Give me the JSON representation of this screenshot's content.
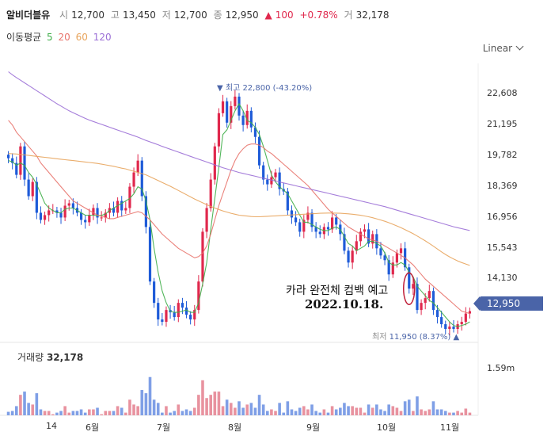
{
  "header": {
    "name": "알비더블유",
    "open_label": "시",
    "open": "12,700",
    "high_label": "고",
    "high": "13,450",
    "low_label": "저",
    "low": "12,700",
    "close_label": "종",
    "close": "12,950",
    "change_arrow": "▲",
    "change": "100",
    "change_pct": "+0.78%",
    "volume_label": "거",
    "volume": "32,178"
  },
  "ma_legend": {
    "label": "이동평균",
    "items": [
      {
        "period": "5",
        "color": "#3fae49"
      },
      {
        "period": "20",
        "color": "#e8736b"
      },
      {
        "period": "60",
        "color": "#e8a45c"
      },
      {
        "period": "120",
        "color": "#9b6fd6"
      }
    ]
  },
  "scale_selector": {
    "value": "Linear"
  },
  "annotations": {
    "high_label": "▼ 최고 22,800 (-43.20%)",
    "low_prefix": "최저",
    "low_value": "11,950 (8.37%) ▲",
    "note_line1": "카라 완전체 컴백 예고",
    "note_line2": "2022.10.18."
  },
  "current_price_tag": "12,950",
  "volume_panel": {
    "title": "거래량",
    "value": "32,178",
    "axis_label": "1.59m"
  },
  "colors": {
    "up": "#e0284d",
    "down": "#1e5bd8",
    "accent": "#4a64a8"
  },
  "chart_data": {
    "type": "candlestick",
    "y_ticks": [
      "22,608",
      "21,195",
      "19,782",
      "18,369",
      "16,956",
      "15,543",
      "14,130"
    ],
    "ylim": [
      11700,
      23400
    ],
    "x_ticks": [
      "14",
      "6월",
      "7월",
      "8월",
      "9월",
      "10월",
      "11월"
    ],
    "x_tick_positions": [
      3,
      17,
      36,
      54,
      74,
      93,
      109
    ],
    "grid": false,
    "n_bars": 115,
    "close": [
      19400,
      19200,
      18700,
      19900,
      18500,
      17800,
      18400,
      17100,
      16800,
      17000,
      17200,
      17200,
      17100,
      16900,
      17400,
      17500,
      17300,
      17100,
      16800,
      16700,
      17000,
      17300,
      16900,
      16900,
      17100,
      17300,
      17100,
      17600,
      17200,
      17300,
      18200,
      18800,
      19300,
      17800,
      16500,
      14200,
      13300,
      12600,
      12500,
      13000,
      12900,
      12700,
      13300,
      13100,
      12800,
      12600,
      13000,
      14200,
      16300,
      17300,
      18500,
      19900,
      21300,
      21800,
      20900,
      21600,
      22000,
      21200,
      20800,
      21400,
      20700,
      20300,
      19100,
      18500,
      18300,
      18600,
      18800,
      18100,
      18000,
      17200,
      16900,
      16700,
      16300,
      16800,
      17100,
      16500,
      16300,
      16200,
      16500,
      16400,
      16900,
      16600,
      16200,
      15500,
      15000,
      15500,
      15900,
      16300,
      16400,
      15800,
      16200,
      15600,
      15300,
      15100,
      14500,
      15000,
      15400,
      15600,
      14800,
      13900,
      14100,
      13000,
      13300,
      13500,
      13800,
      13000,
      12700,
      12400,
      12200,
      12300,
      12200,
      12400,
      12500,
      12850,
      12950
    ],
    "ma": {
      "5": [
        19300,
        19250,
        19100,
        19200,
        19100,
        18800,
        18600,
        18300,
        17900,
        17500,
        17300,
        17200,
        17100,
        17100,
        17250,
        17300,
        17300,
        17200,
        17100,
        17000,
        17000,
        17000,
        16980,
        16990,
        17050,
        17200,
        17300,
        17400,
        17500,
        17600,
        17700,
        17900,
        18200,
        18100,
        17600,
        16800,
        15600,
        14600,
        13800,
        13300,
        12950,
        12900,
        12900,
        12950,
        13000,
        12900,
        12900,
        13300,
        14100,
        15000,
        16400,
        17700,
        19000,
        20400,
        20600,
        21000,
        21400,
        21700,
        21400,
        21000,
        20900,
        20700,
        20400,
        19900,
        19300,
        18700,
        18400,
        18200,
        18050,
        17900,
        17600,
        17300,
        17000,
        16700,
        16700,
        16600,
        16500,
        16400,
        16350,
        16350,
        16450,
        16500,
        16400,
        16100,
        15800,
        15700,
        15500,
        15600,
        15700,
        15900,
        15900,
        15800,
        15700,
        15400,
        15000,
        14900,
        14900,
        15000,
        14900,
        14600,
        14400,
        14000,
        13800,
        13600,
        13400,
        13300,
        13100,
        12900,
        12700,
        12500,
        12350,
        12300,
        12350,
        12400,
        12500
      ],
      "20": [
        21000,
        20800,
        20500,
        20300,
        20100,
        19900,
        19700,
        19500,
        19200,
        19000,
        18800,
        18600,
        18400,
        18200,
        18000,
        17800,
        17600,
        17500,
        17400,
        17300,
        17200,
        17100,
        17000,
        16950,
        16900,
        16850,
        16850,
        16900,
        16950,
        17000,
        17050,
        17100,
        17150,
        17100,
        16950,
        16800,
        16600,
        16400,
        16200,
        16050,
        15900,
        15750,
        15600,
        15500,
        15400,
        15300,
        15200,
        15250,
        15400,
        15700,
        16200,
        16800,
        17400,
        17900,
        18400,
        18900,
        19300,
        19600,
        19800,
        19950,
        20000,
        20000,
        19950,
        19850,
        19700,
        19600,
        19450,
        19300,
        19150,
        19000,
        18850,
        18700,
        18550,
        18400,
        18250,
        18050,
        17850,
        17650,
        17450,
        17250,
        17100,
        16950,
        16800,
        16650,
        16500,
        16400,
        16300,
        16200,
        16100,
        16000,
        15950,
        15900,
        15800,
        15700,
        15600,
        15500,
        15400,
        15300,
        15200,
        15050,
        14900,
        14700,
        14500,
        14300,
        14150,
        14000,
        13850,
        13700,
        13550,
        13400,
        13250,
        13100,
        12950,
        12900,
        12850
      ],
      "60": [
        19600,
        19590,
        19580,
        19560,
        19540,
        19520,
        19500,
        19480,
        19460,
        19440,
        19420,
        19400,
        19380,
        19360,
        19340,
        19320,
        19300,
        19280,
        19260,
        19240,
        19220,
        19200,
        19180,
        19150,
        19120,
        19090,
        19060,
        19020,
        18980,
        18950,
        18900,
        18850,
        18800,
        18750,
        18700,
        18620,
        18540,
        18460,
        18380,
        18300,
        18220,
        18130,
        18040,
        17950,
        17860,
        17770,
        17680,
        17600,
        17520,
        17440,
        17370,
        17300,
        17240,
        17180,
        17130,
        17080,
        17040,
        17000,
        16980,
        16960,
        16940,
        16930,
        16930,
        16940,
        16950,
        16960,
        16970,
        16980,
        16990,
        17000,
        17010,
        17020,
        17030,
        17040,
        17050,
        17060,
        17070,
        17080,
        17085,
        17090,
        17090,
        17085,
        17080,
        17070,
        17055,
        17040,
        17020,
        16995,
        16965,
        16930,
        16890,
        16845,
        16795,
        16740,
        16680,
        16615,
        16545,
        16470,
        16390,
        16305,
        16215,
        16120,
        16020,
        15915,
        15805,
        15690,
        15570,
        15450,
        15340,
        15240,
        15150,
        15070,
        15000,
        14940,
        14880
      ],
      "120": [
        23050,
        22920,
        22800,
        22690,
        22580,
        22470,
        22360,
        22250,
        22140,
        22030,
        21920,
        21810,
        21700,
        21600,
        21500,
        21400,
        21320,
        21240,
        21160,
        21080,
        21010,
        20950,
        20890,
        20830,
        20770,
        20710,
        20650,
        20590,
        20530,
        20470,
        20410,
        20350,
        20290,
        20220,
        20150,
        20090,
        20030,
        19970,
        19900,
        19840,
        19780,
        19720,
        19660,
        19600,
        19540,
        19480,
        19420,
        19360,
        19300,
        19240,
        19180,
        19120,
        19060,
        19000,
        18950,
        18900,
        18850,
        18800,
        18760,
        18720,
        18680,
        18640,
        18600,
        18560,
        18520,
        18480,
        18440,
        18400,
        18360,
        18320,
        18280,
        18240,
        18200,
        18160,
        18120,
        18080,
        18040,
        18000,
        17960,
        17920,
        17880,
        17840,
        17800,
        17760,
        17720,
        17680,
        17640,
        17600,
        17560,
        17520,
        17480,
        17440,
        17400,
        17360,
        17310,
        17260,
        17210,
        17160,
        17110,
        17060,
        17010,
        16960,
        16910,
        16860,
        16810,
        16760,
        16710,
        16660,
        16610,
        16560,
        16510,
        16470,
        16430,
        16390,
        16350
      ]
    },
    "volume_max": 1590000
  }
}
